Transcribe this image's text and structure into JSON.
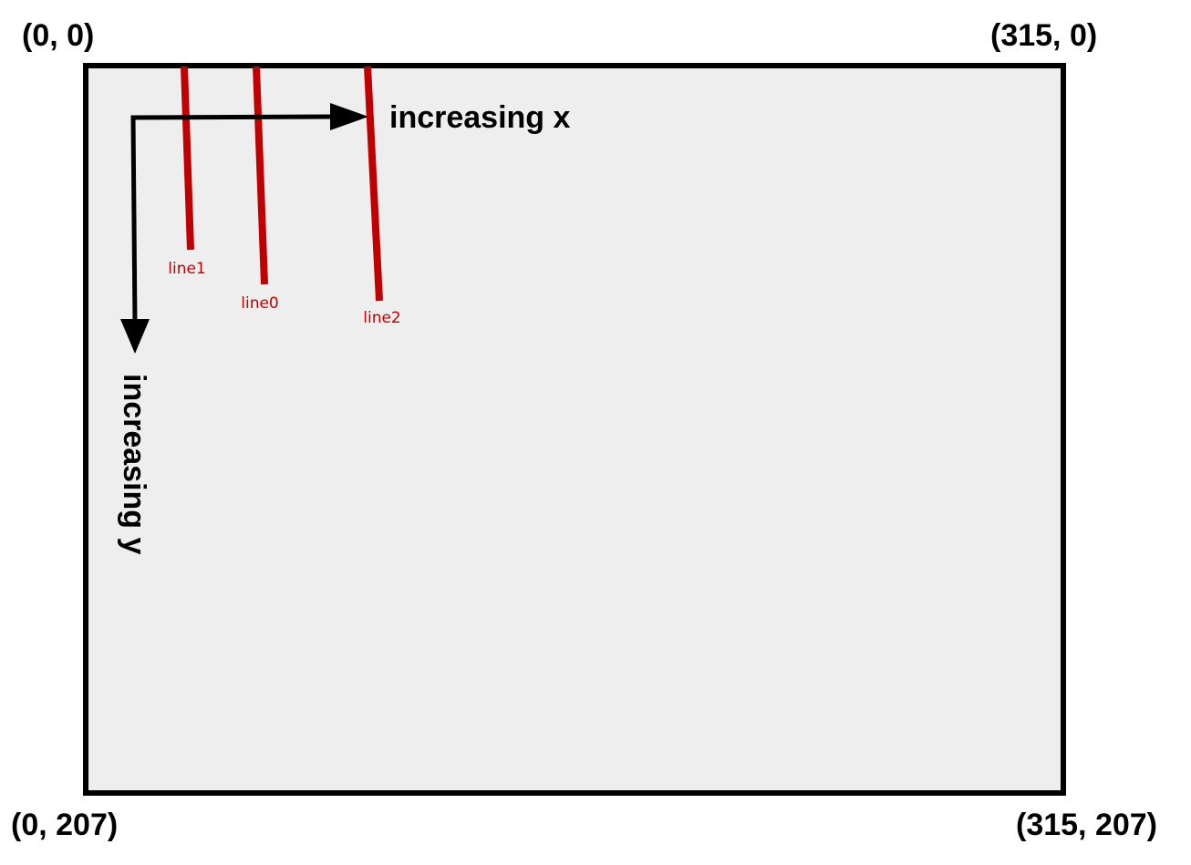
{
  "corners": {
    "top_left": "(0, 0)",
    "top_right": "(315, 0)",
    "bottom_left": "(0, 207)",
    "bottom_right": "(315, 207)"
  },
  "axes": {
    "x_label": "increasing x",
    "y_label": "increasing y"
  },
  "lines": [
    {
      "label": "line1"
    },
    {
      "label": "line0"
    },
    {
      "label": "line2"
    }
  ],
  "colors": {
    "frame": "#000000",
    "canvas_fill": "#eeeeee",
    "line": "#c00000",
    "arrow": "#000000"
  }
}
